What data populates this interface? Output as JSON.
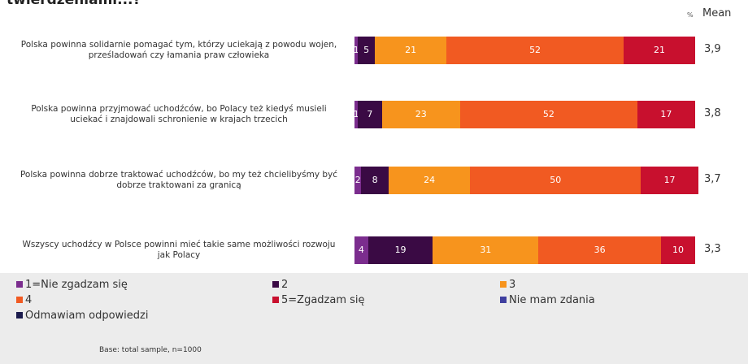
{
  "chart_data": {
    "type": "stacked-bar-horizontal",
    "title": "twierdzeniami...?",
    "percent_label": "%",
    "mean_label": "Mean",
    "categories": [
      "Polska powinna solidarnie pomagać tym, którzy uciekają z powodu wojen, prześladowań czy łamania praw człowieka",
      "Polska powinna przyjmować uchodźców, bo Polacy też kiedyś musieli uciekać i znajdowali schronienie w krajach trzecich",
      "Polska powinna dobrze traktować uchodźców, bo my też chcielibyśmy być dobrze traktowani za granicą",
      "Wszyscy uchodźcy w Polsce powinni mieć takie same możliwości rozwoju jak Polacy"
    ],
    "xlim": [
      0,
      100
    ],
    "series": [
      {
        "name": "1=Nie zgadzam się",
        "color": "#7b2d8e",
        "values": [
          1,
          1,
          2,
          4
        ]
      },
      {
        "name": "2",
        "color": "#3a0a44",
        "values": [
          5,
          7,
          8,
          19
        ]
      },
      {
        "name": "3",
        "color": "#f7941d",
        "values": [
          21,
          23,
          24,
          31
        ]
      },
      {
        "name": "4",
        "color": "#f15a22",
        "values": [
          52,
          52,
          50,
          36
        ]
      },
      {
        "name": "5=Zgadzam się",
        "color": "#c8102e",
        "values": [
          21,
          17,
          17,
          10
        ]
      },
      {
        "name": "Nie mam zdania",
        "color": "#3f3f9f",
        "values": [
          0,
          0,
          0,
          0
        ]
      },
      {
        "name": "Odmawiam odpowiedzi",
        "color": "#1b1b4d",
        "values": [
          0,
          0,
          0,
          0
        ]
      }
    ],
    "means": [
      3.9,
      3.8,
      3.7,
      3.3
    ],
    "mean_labels": [
      "3,9",
      "3,8",
      "3,7",
      "3,3"
    ],
    "footnote": "Base: total sample, n=1000"
  }
}
